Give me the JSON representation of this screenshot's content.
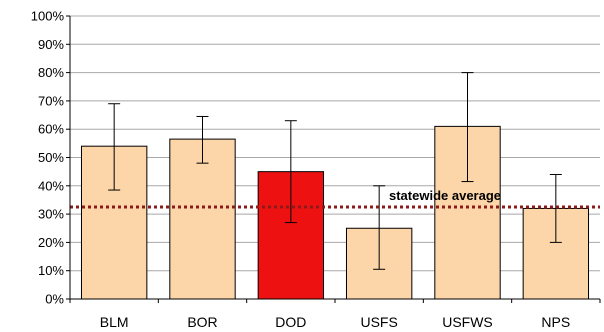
{
  "chart_data": {
    "type": "bar",
    "categories": [
      "BLM",
      "BOR",
      "DOD",
      "USFS",
      "USFWS",
      "NPS"
    ],
    "values": [
      54,
      56.5,
      45,
      25,
      61,
      32
    ],
    "error_low": [
      38.5,
      48,
      27,
      10.5,
      41.5,
      20
    ],
    "error_high": [
      69,
      64.5,
      63,
      40,
      80,
      44
    ],
    "ylim": [
      0,
      100
    ],
    "yticks": [
      "0%",
      "10%",
      "20%",
      "30%",
      "40%",
      "50%",
      "60%",
      "70%",
      "80%",
      "90%",
      "100%"
    ],
    "grid": true,
    "reference_line": {
      "value": 32.5,
      "label": "statewide average",
      "color": "#8B1A1A"
    },
    "bar_colors": [
      "#FCD5A8",
      "#FCD5A8",
      "#EE1111",
      "#FCD5A8",
      "#FCD5A8",
      "#FCD5A8"
    ],
    "title": "",
    "xlabel": "",
    "ylabel": ""
  }
}
